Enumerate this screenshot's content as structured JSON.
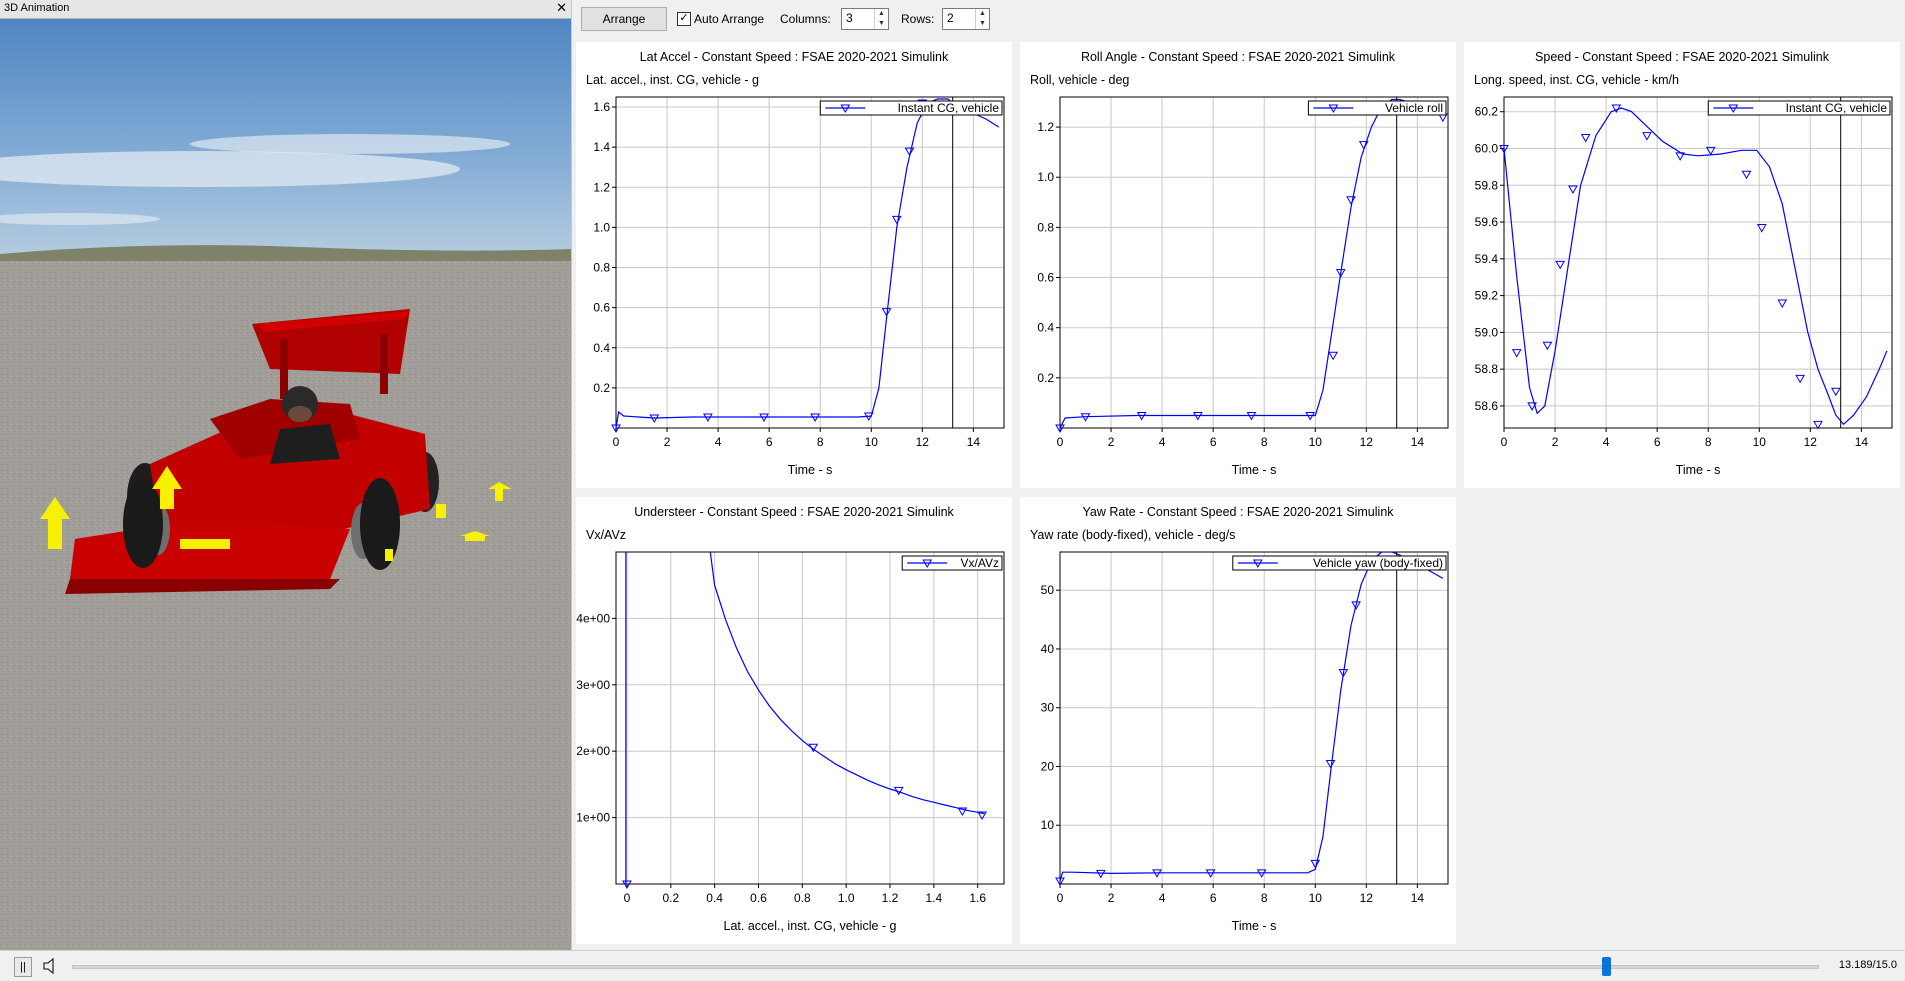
{
  "animation": {
    "title": "3D Animation",
    "close_icon": "close-icon"
  },
  "toolbar": {
    "arrange_label": "Arrange",
    "auto_arrange_label": "Auto Arrange",
    "auto_arrange_checked": true,
    "columns_label": "Columns:",
    "columns_value": "3",
    "rows_label": "Rows:",
    "rows_value": "2"
  },
  "playback": {
    "pause_icon": "pause-icon",
    "speaker_icon": "speaker-icon",
    "time_text": "13.189/15.0",
    "progress": 0.879
  },
  "colors": {
    "series": "#0000ff",
    "cursor": "#000000",
    "grid": "#c8c8c8"
  },
  "chart_data": [
    {
      "type": "line",
      "title": "Lat Accel - Constant Speed : FSAE 2020-2021 Simulink",
      "subtitle": "Lat. accel., inst. CG, vehicle - g",
      "xlabel": "Time - s",
      "xlim": [
        0,
        15.2
      ],
      "ylim": [
        0,
        1.65
      ],
      "xticks": [
        0,
        2,
        4,
        6,
        8,
        10,
        12,
        14
      ],
      "yticks": [
        0.2,
        0.4,
        0.6,
        0.8,
        1.0,
        1.2,
        1.4,
        1.6
      ],
      "ytick_labels": [
        "0.2",
        "0.4",
        "0.6",
        "0.8",
        "1.0",
        "1.2",
        "1.4",
        "1.6"
      ],
      "cursor_x": 13.19,
      "legend": "Instant CG, vehicle",
      "series": [
        {
          "name": "Instant CG, vehicle",
          "x": [
            0,
            0.1,
            0.3,
            1.5,
            3.0,
            6.0,
            8.0,
            9.5,
            10.0,
            10.3,
            10.6,
            11.0,
            11.4,
            11.8,
            12.2,
            12.6,
            13.0,
            13.2,
            13.8,
            14.5,
            15.0
          ],
          "y": [
            0.0,
            0.08,
            0.06,
            0.05,
            0.055,
            0.055,
            0.055,
            0.055,
            0.06,
            0.2,
            0.55,
            1.0,
            1.3,
            1.52,
            1.62,
            1.64,
            1.64,
            1.62,
            1.58,
            1.54,
            1.5
          ],
          "markers": [
            [
              0,
              0.0
            ],
            [
              1.5,
              0.05
            ],
            [
              3.6,
              0.055
            ],
            [
              5.8,
              0.055
            ],
            [
              7.8,
              0.055
            ],
            [
              9.9,
              0.06
            ],
            [
              10.6,
              0.58
            ],
            [
              11.0,
              1.04
            ],
            [
              11.5,
              1.38
            ],
            [
              12.0,
              1.62
            ],
            [
              13.9,
              1.59
            ]
          ]
        }
      ]
    },
    {
      "type": "line",
      "title": "Roll Angle - Constant Speed : FSAE 2020-2021 Simulink",
      "subtitle": "Roll, vehicle - deg",
      "xlabel": "Time - s",
      "xlim": [
        0,
        15.2
      ],
      "ylim": [
        0,
        1.32
      ],
      "xticks": [
        0,
        2,
        4,
        6,
        8,
        10,
        12,
        14
      ],
      "yticks": [
        0.2,
        0.4,
        0.6,
        0.8,
        1.0,
        1.2
      ],
      "ytick_labels": [
        "0.2",
        "0.4",
        "0.6",
        "0.8",
        "1.0",
        "1.2"
      ],
      "cursor_x": 13.19,
      "legend": "Vehicle roll",
      "series": [
        {
          "name": "Vehicle roll",
          "x": [
            0,
            0.2,
            1.0,
            3.0,
            6.0,
            9.0,
            10.0,
            10.3,
            10.6,
            11.0,
            11.4,
            11.8,
            12.2,
            12.6,
            13.0,
            13.3,
            14.0,
            15.0
          ],
          "y": [
            0.0,
            0.04,
            0.045,
            0.05,
            0.05,
            0.05,
            0.05,
            0.15,
            0.35,
            0.62,
            0.88,
            1.08,
            1.2,
            1.28,
            1.31,
            1.31,
            1.29,
            1.26
          ],
          "markers": [
            [
              0,
              0.0
            ],
            [
              1.0,
              0.045
            ],
            [
              3.2,
              0.05
            ],
            [
              5.4,
              0.05
            ],
            [
              7.5,
              0.05
            ],
            [
              9.8,
              0.05
            ],
            [
              10.7,
              0.29
            ],
            [
              11.0,
              0.62
            ],
            [
              11.4,
              0.91
            ],
            [
              11.9,
              1.13
            ],
            [
              12.6,
              1.28
            ],
            [
              15.0,
              1.24
            ]
          ]
        }
      ]
    },
    {
      "type": "line",
      "title": "Speed - Constant Speed : FSAE 2020-2021 Simulink",
      "subtitle": "Long. speed, inst. CG, vehicle - km/h",
      "xlabel": "Time - s",
      "xlim": [
        0,
        15.2
      ],
      "ylim": [
        58.48,
        60.28
      ],
      "xticks": [
        0,
        2,
        4,
        6,
        8,
        10,
        12,
        14
      ],
      "yticks": [
        58.6,
        58.8,
        59.0,
        59.2,
        59.4,
        59.6,
        59.8,
        60.0,
        60.2
      ],
      "ytick_labels": [
        "58.6",
        "58.8",
        "59.0",
        "59.2",
        "59.4",
        "59.6",
        "59.8",
        "60.0",
        "60.2"
      ],
      "cursor_x": 13.19,
      "legend": "Instant CG, vehicle",
      "series": [
        {
          "name": "Instant CG, vehicle",
          "x": [
            0,
            0.5,
            1.0,
            1.3,
            1.6,
            2.0,
            2.5,
            3.0,
            3.6,
            4.2,
            4.6,
            5.0,
            5.6,
            6.2,
            7.0,
            7.6,
            8.5,
            9.3,
            9.9,
            10.4,
            10.9,
            11.4,
            11.9,
            12.3,
            12.7,
            13.0,
            13.3,
            13.7,
            14.2,
            14.7,
            15.0
          ],
          "y": [
            60.0,
            59.3,
            58.7,
            58.56,
            58.6,
            58.9,
            59.35,
            59.8,
            60.07,
            60.2,
            60.22,
            60.2,
            60.12,
            60.04,
            59.97,
            59.96,
            59.97,
            59.99,
            59.99,
            59.9,
            59.7,
            59.35,
            59.0,
            58.8,
            58.66,
            58.55,
            58.5,
            58.55,
            58.65,
            58.8,
            58.9
          ],
          "markers": [
            [
              0,
              60.0
            ],
            [
              0.5,
              58.89
            ],
            [
              1.1,
              58.6
            ],
            [
              1.7,
              58.93
            ],
            [
              2.2,
              59.37
            ],
            [
              2.7,
              59.78
            ],
            [
              3.2,
              60.06
            ],
            [
              4.4,
              60.22
            ],
            [
              5.6,
              60.07
            ],
            [
              6.9,
              59.96
            ],
            [
              8.1,
              59.99
            ],
            [
              9.5,
              59.86
            ],
            [
              10.1,
              59.57
            ],
            [
              10.9,
              59.16
            ],
            [
              11.6,
              58.75
            ],
            [
              12.3,
              58.5
            ],
            [
              13.0,
              58.68
            ]
          ]
        }
      ]
    },
    {
      "type": "line",
      "title": "Understeer - Constant Speed : FSAE 2020-2021 Simulink",
      "subtitle": "Vx/AVz",
      "xlabel": "Lat. accel., inst. CG, vehicle - g",
      "xlim": [
        -0.05,
        1.72
      ],
      "ylim": [
        0,
        5.0
      ],
      "xticks": [
        0,
        0.2,
        0.4,
        0.6,
        0.8,
        1.0,
        1.2,
        1.4,
        1.6
      ],
      "xtick_labels": [
        "0",
        "0.2",
        "0.4",
        "0.6",
        "0.8",
        "1.0",
        "1.2",
        "1.4",
        "1.6"
      ],
      "yticks": [
        1,
        2,
        3,
        4
      ],
      "ytick_labels": [
        "1e+00",
        "2e+00",
        "3e+00",
        "4e+00"
      ],
      "legend": "Vx/AVz",
      "series": [
        {
          "name": "Vx/AVz",
          "x": [
            0.38,
            0.4,
            0.45,
            0.5,
            0.55,
            0.6,
            0.65,
            0.7,
            0.75,
            0.8,
            0.85,
            0.9,
            0.95,
            1.0,
            1.05,
            1.1,
            1.15,
            1.2,
            1.25,
            1.3,
            1.35,
            1.4,
            1.45,
            1.5,
            1.55,
            1.6,
            1.63
          ],
          "y": [
            5.0,
            4.5,
            3.98,
            3.55,
            3.2,
            2.92,
            2.68,
            2.48,
            2.31,
            2.16,
            2.03,
            1.92,
            1.81,
            1.72,
            1.64,
            1.56,
            1.49,
            1.43,
            1.38,
            1.32,
            1.27,
            1.23,
            1.19,
            1.15,
            1.11,
            1.08,
            1.06
          ],
          "markers": [
            [
              0.0,
              0.0
            ],
            [
              0.85,
              2.06
            ],
            [
              1.24,
              1.41
            ],
            [
              1.53,
              1.1
            ],
            [
              1.62,
              1.04
            ]
          ]
        }
      ]
    },
    {
      "type": "line",
      "title": "Yaw Rate - Constant Speed : FSAE 2020-2021 Simulink",
      "subtitle": "Yaw rate (body-fixed), vehicle - deg/s",
      "xlabel": "Time - s",
      "xlim": [
        0,
        15.2
      ],
      "ylim": [
        0,
        56.5
      ],
      "xticks": [
        0,
        2,
        4,
        6,
        8,
        10,
        12,
        14
      ],
      "yticks": [
        10,
        20,
        30,
        40,
        50
      ],
      "ytick_labels": [
        "10",
        "20",
        "30",
        "40",
        "50"
      ],
      "cursor_x": 13.19,
      "legend": "Vehicle yaw (body-fixed)",
      "series": [
        {
          "name": "Vehicle yaw (body-fixed)",
          "x": [
            0,
            0.1,
            0.5,
            2.0,
            4.0,
            6.0,
            8.0,
            9.7,
            10.0,
            10.3,
            10.6,
            11.0,
            11.4,
            11.8,
            12.2,
            12.6,
            13.0,
            13.3,
            14.0,
            14.6,
            15.0
          ],
          "y": [
            0.5,
            2.0,
            2.0,
            1.8,
            1.9,
            1.9,
            1.9,
            1.9,
            2.5,
            8.0,
            19.0,
            33.0,
            44.0,
            51.0,
            55.0,
            56.5,
            56.5,
            56.0,
            54.5,
            53.0,
            52.0
          ],
          "markers": [
            [
              0,
              0.5
            ],
            [
              1.6,
              1.8
            ],
            [
              3.8,
              1.9
            ],
            [
              5.9,
              1.9
            ],
            [
              7.9,
              1.9
            ],
            [
              10.0,
              3.5
            ],
            [
              10.6,
              20.5
            ],
            [
              11.1,
              36.0
            ],
            [
              11.6,
              47.5
            ],
            [
              12.2,
              55.0
            ],
            [
              13.9,
              55.0
            ]
          ]
        }
      ]
    }
  ]
}
